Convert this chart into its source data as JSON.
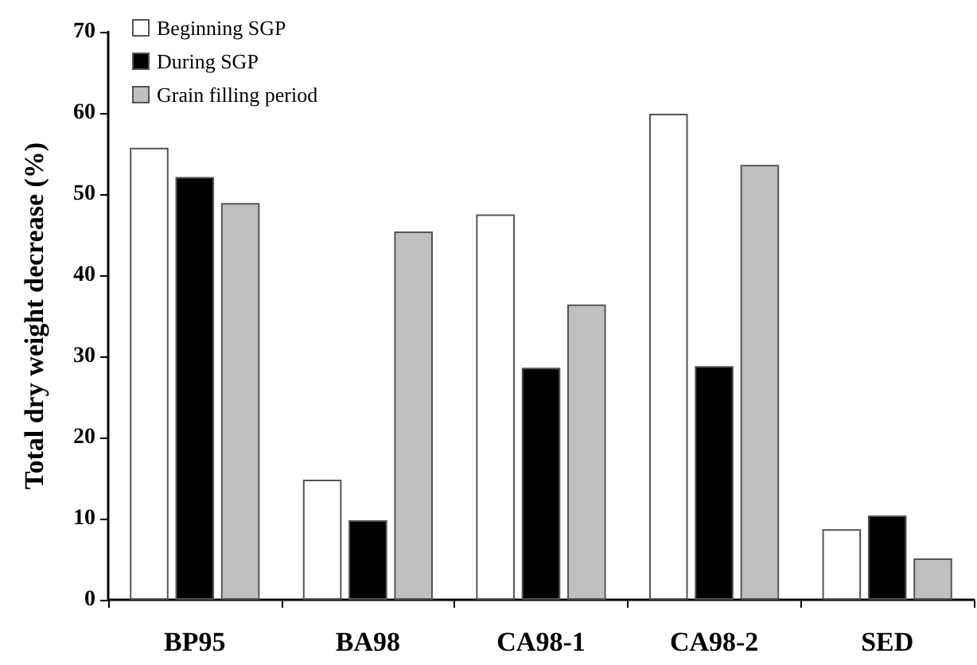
{
  "chart_data": {
    "type": "bar",
    "ylabel": "Total dry weight decrease (%)",
    "categories": [
      "BP95",
      "BA98",
      "CA98-1",
      "CA98-2",
      "SED"
    ],
    "series": [
      {
        "name": "Beginning SGP",
        "color": "#ffffff",
        "values": [
          55.7,
          14.8,
          47.5,
          59.9,
          8.7
        ]
      },
      {
        "name": "During SGP",
        "color": "#000000",
        "values": [
          52.1,
          9.8,
          28.6,
          28.8,
          10.4
        ]
      },
      {
        "name": "Grain filling period",
        "color": "#c0c0c0",
        "values": [
          48.9,
          45.4,
          36.4,
          53.6,
          5.1
        ]
      }
    ],
    "ylim": [
      0,
      70
    ],
    "yticks": [
      0,
      10,
      20,
      30,
      40,
      50,
      60,
      70
    ],
    "grid": false,
    "legend": "top left"
  }
}
